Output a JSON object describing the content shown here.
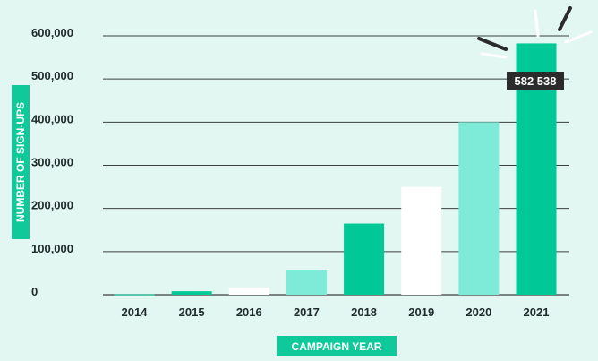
{
  "chart_data": {
    "type": "bar",
    "categories": [
      "2014",
      "2015",
      "2016",
      "2017",
      "2018",
      "2019",
      "2020",
      "2021"
    ],
    "values": [
      1000,
      8000,
      17000,
      58000,
      165000,
      250000,
      400000,
      582538
    ],
    "bar_colors": [
      "#00c896",
      "#00c896",
      "#ffffff",
      "#7eead8",
      "#00c896",
      "#ffffff",
      "#7eead8",
      "#00c896"
    ],
    "title": "",
    "xlabel": "CAMPAIGN YEAR",
    "ylabel": "NUMBER OF SIGN-UPS",
    "ylim": [
      0,
      600000
    ],
    "yticks": [
      0,
      100000,
      200000,
      300000,
      400000,
      500000,
      600000
    ],
    "ytick_labels": [
      "0",
      "100,000",
      "200,000",
      "300,000",
      "400,000",
      "500,000",
      "600,000"
    ],
    "grid": "horizontal",
    "annotation": {
      "category": "2021",
      "text": "582 538"
    }
  },
  "colors": {
    "background": "#e3f7f2",
    "gridline": "#3a4040",
    "accent": "#10c99a",
    "callout_box": "#2b2b2b"
  }
}
